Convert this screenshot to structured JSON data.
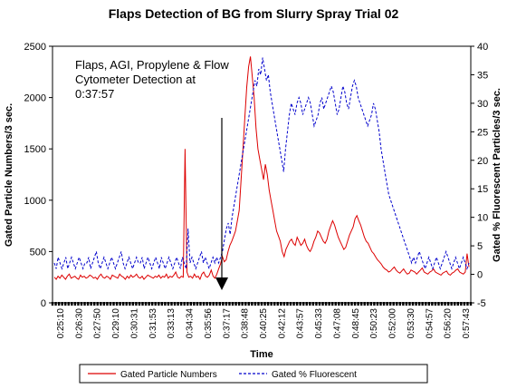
{
  "chart_data": {
    "type": "line",
    "title": "Flaps Detection of BG from Slurry Spray Trial 02",
    "xlabel": "Time",
    "ylabel_left": "Gated Particle Numbers/3 sec.",
    "ylabel_right": "Gated % Fluorescent Particles/3 sec.",
    "ylim_left": [
      0,
      2500
    ],
    "ylim_right": [
      -5,
      40
    ],
    "yticks_left": [
      "0",
      "500",
      "1000",
      "1500",
      "2000",
      "2500"
    ],
    "yticks_right": [
      "-5",
      "0",
      "5",
      "10",
      "15",
      "20",
      "25",
      "30",
      "35",
      "40"
    ],
    "xticks": [
      "0:25:10",
      "0:26:30",
      "0:27:50",
      "0:29:10",
      "0:30:31",
      "0:31:53",
      "0:33:13",
      "0:34:34",
      "0:35:56",
      "0:37:17",
      "0:38:48",
      "0:40:25",
      "0:42:12",
      "0:43:57",
      "0:45:33",
      "0:47:08",
      "0:48:45",
      "0:50:23",
      "0:52:00",
      "0:53:30",
      "0:54:57",
      "0:56:20",
      "0:57:43"
    ],
    "annotation": {
      "lines": [
        "Flaps, AGI, Propylene & Flow",
        "Cytometer Detection at",
        "0:37:57"
      ],
      "arrow_at_tick": "0:37:57"
    },
    "grid": false,
    "legend_position": "bottom",
    "series": [
      {
        "name": "Gated Particle Numbers",
        "axis": "left",
        "color": "#dd0000",
        "style": "solid",
        "values": [
          250,
          230,
          260,
          240,
          270,
          250,
          230,
          260,
          280,
          240,
          250,
          260,
          240,
          230,
          270,
          250,
          260,
          240,
          250,
          270,
          260,
          240,
          250,
          230,
          260,
          280,
          250,
          240,
          260,
          250,
          230,
          270,
          260,
          250,
          240,
          280,
          260,
          250,
          230,
          260,
          240,
          270,
          250,
          260,
          280,
          250,
          240,
          260,
          230,
          250,
          270,
          260,
          250,
          240,
          260,
          250,
          270,
          240,
          260,
          250,
          280,
          240,
          260,
          250,
          270,
          300,
          250,
          240,
          260,
          250,
          1500,
          300,
          250,
          260,
          240,
          280,
          250,
          260,
          230,
          280,
          300,
          260,
          250,
          270,
          320,
          260,
          240,
          280,
          330,
          380,
          450,
          400,
          420,
          500,
          560,
          600,
          650,
          700,
          800,
          900,
          1200,
          1500,
          1800,
          2100,
          2300,
          2400,
          2200,
          2000,
          1700,
          1500,
          1400,
          1300,
          1200,
          1350,
          1250,
          1100,
          1000,
          900,
          800,
          700,
          650,
          600,
          500,
          450,
          520,
          560,
          600,
          620,
          580,
          560,
          640,
          600,
          560,
          580,
          620,
          560,
          520,
          500,
          540,
          600,
          640,
          700,
          680,
          640,
          600,
          580,
          620,
          700,
          750,
          800,
          760,
          700,
          640,
          600,
          560,
          520,
          540,
          600,
          660,
          700,
          740,
          820,
          850,
          800,
          760,
          700,
          640,
          600,
          580,
          540,
          500,
          480,
          450,
          420,
          400,
          380,
          350,
          330,
          320,
          300,
          310,
          330,
          350,
          320,
          300,
          290,
          310,
          330,
          300,
          280,
          290,
          320,
          310,
          300,
          280,
          300,
          320,
          340,
          300,
          290,
          280,
          300,
          310,
          330,
          300,
          290,
          280,
          270,
          290,
          300,
          310,
          280,
          270,
          290,
          300,
          320,
          330,
          300,
          290,
          280,
          300,
          480,
          350
        ]
      },
      {
        "name": "Gated % Fluorescent",
        "axis": "right",
        "color": "#0000cc",
        "style": "dashed",
        "values": [
          2,
          1,
          3,
          2,
          1,
          2,
          3,
          1,
          2,
          3,
          2,
          1,
          2,
          3,
          2,
          1,
          2,
          2,
          3,
          1,
          2,
          3,
          4,
          2,
          1,
          2,
          3,
          2,
          1,
          2,
          3,
          2,
          1,
          2,
          3,
          4,
          2,
          1,
          2,
          3,
          2,
          1,
          2,
          3,
          2,
          2,
          3,
          1,
          2,
          3,
          2,
          1,
          2,
          3,
          2,
          1,
          3,
          2,
          1,
          2,
          3,
          2,
          1,
          2,
          3,
          2,
          1,
          3,
          2,
          1,
          8,
          2,
          3,
          2,
          1,
          2,
          3,
          4,
          2,
          3,
          2,
          1,
          2,
          3,
          2,
          3,
          2,
          3,
          4,
          6,
          8,
          9,
          7,
          10,
          12,
          14,
          16,
          18,
          20,
          22,
          24,
          26,
          28,
          30,
          32,
          34,
          33,
          36,
          35,
          38,
          36,
          34,
          35,
          32,
          30,
          28,
          26,
          24,
          22,
          20,
          18,
          22,
          25,
          28,
          30,
          29,
          28,
          30,
          31,
          30,
          28,
          29,
          30,
          31,
          30,
          28,
          26,
          27,
          28,
          30,
          31,
          29,
          30,
          31,
          32,
          33,
          32,
          30,
          28,
          29,
          31,
          33,
          32,
          30,
          29,
          31,
          33,
          34,
          33,
          31,
          30,
          29,
          28,
          27,
          26,
          27,
          28,
          30,
          29,
          27,
          25,
          22,
          20,
          18,
          16,
          14,
          13,
          12,
          11,
          10,
          9,
          8,
          7,
          6,
          5,
          4,
          3,
          2,
          3,
          2,
          3,
          4,
          3,
          2,
          1,
          2,
          3,
          2,
          1,
          2,
          3,
          2,
          1,
          2,
          3,
          4,
          3,
          2,
          1,
          2,
          3,
          2,
          1,
          2,
          3,
          2,
          1,
          2
        ]
      }
    ]
  }
}
